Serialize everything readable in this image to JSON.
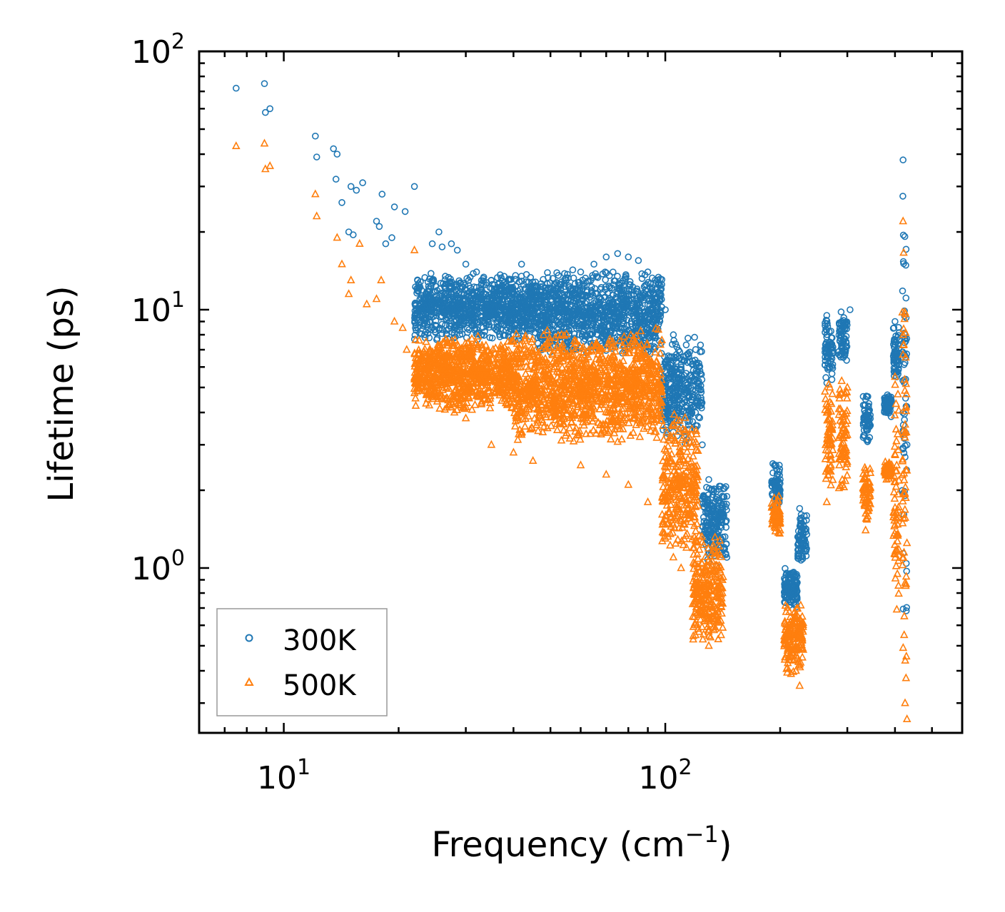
{
  "chart_data": {
    "type": "scatter",
    "xscale": "log",
    "yscale": "log",
    "xlim": [
      6,
      600
    ],
    "ylim": [
      0.23,
      100
    ],
    "xlabel": "Frequency (cm",
    "xlabel_sup": "−1",
    "xlabel_close": ")",
    "ylabel": "Lifetime (ps)",
    "x_major_ticks": [
      {
        "value": 10,
        "base": "10",
        "exp": "1"
      },
      {
        "value": 100,
        "base": "10",
        "exp": "2"
      }
    ],
    "y_major_ticks": [
      {
        "value": 1,
        "base": "10",
        "exp": "0"
      },
      {
        "value": 10,
        "base": "10",
        "exp": "1"
      },
      {
        "value": 100,
        "base": "10",
        "exp": "2"
      }
    ],
    "legend_position": "bottom-left",
    "series": [
      {
        "name": "300K",
        "marker": "circle",
        "color": "#1f77b4",
        "points": [
          [
            7.5,
            72
          ],
          [
            8.9,
            75
          ],
          [
            8.95,
            58
          ],
          [
            9.2,
            60
          ],
          [
            12.1,
            47
          ],
          [
            12.2,
            39
          ],
          [
            13.5,
            42
          ],
          [
            13.8,
            40
          ],
          [
            13.7,
            32
          ],
          [
            14.2,
            26
          ],
          [
            15.0,
            30
          ],
          [
            15.5,
            29
          ],
          [
            16.1,
            31
          ],
          [
            14.8,
            20
          ],
          [
            15.2,
            19.5
          ],
          [
            17.5,
            22
          ],
          [
            17.8,
            21
          ],
          [
            18.1,
            28
          ],
          [
            18.5,
            18
          ],
          [
            19.5,
            25
          ],
          [
            19.2,
            19
          ],
          [
            20.8,
            24
          ],
          [
            22.0,
            30
          ],
          [
            24.5,
            18
          ],
          [
            25.5,
            20
          ],
          [
            26.0,
            17.5
          ],
          [
            27.5,
            18
          ],
          [
            28.5,
            17
          ],
          [
            30.0,
            15
          ],
          [
            32.0,
            14
          ],
          [
            35.0,
            13
          ],
          [
            38.0,
            12.5
          ],
          [
            42.0,
            15
          ],
          [
            45.0,
            11
          ],
          [
            50.0,
            12
          ],
          [
            55.0,
            13
          ],
          [
            60.0,
            14
          ],
          [
            65.0,
            15
          ],
          [
            70.0,
            16
          ],
          [
            75.0,
            16.5
          ],
          [
            80.0,
            16
          ],
          [
            85.0,
            15.5
          ],
          [
            90.0,
            14
          ],
          [
            95.0,
            11
          ],
          [
            100.0,
            10
          ],
          [
            105.0,
            8
          ],
          [
            110.0,
            6
          ],
          [
            115.0,
            5
          ],
          [
            120.0,
            4
          ],
          [
            125.0,
            3
          ],
          [
            130.0,
            2.2
          ],
          [
            135.0,
            1.6
          ],
          [
            140.0,
            1.3
          ],
          [
            145.0,
            1.1
          ],
          [
            195.0,
            2.5
          ],
          [
            200.0,
            2.2
          ],
          [
            210.0,
            0.9
          ],
          [
            220.0,
            0.85
          ],
          [
            225.0,
            1.7
          ],
          [
            265.0,
            9.5
          ],
          [
            270.0,
            6
          ],
          [
            290.0,
            9
          ],
          [
            305.0,
            10
          ],
          [
            335.0,
            4.5
          ],
          [
            380.0,
            4.5
          ],
          [
            400.0,
            9
          ],
          [
            420.0,
            38
          ],
          [
            425.0,
            8
          ],
          [
            430.0,
            3
          ]
        ],
        "bands": [
          {
            "x": [
              22,
              46
            ],
            "y": [
              7.5,
              14
            ]
          },
          {
            "x": [
              46,
              98
            ],
            "y": [
              6.5,
              14.5
            ]
          },
          {
            "x": [
              98,
              125
            ],
            "y": [
              3,
              8
            ]
          },
          {
            "x": [
              125,
              145
            ],
            "y": [
              1.0,
              2.2
            ]
          },
          {
            "x": [
              190,
              200
            ],
            "y": [
              1.6,
              2.6
            ]
          },
          {
            "x": [
              205,
              222
            ],
            "y": [
              0.7,
              1.0
            ]
          },
          {
            "x": [
              222,
              235
            ],
            "y": [
              1.0,
              1.7
            ]
          },
          {
            "x": [
              262,
              275
            ],
            "y": [
              5,
              9.5
            ]
          },
          {
            "x": [
              285,
              300
            ],
            "y": [
              6,
              10
            ]
          },
          {
            "x": [
              330,
              345
            ],
            "y": [
              3,
              4.8
            ]
          },
          {
            "x": [
              375,
              392
            ],
            "y": [
              3.8,
              4.8
            ]
          },
          {
            "x": [
              396,
              410
            ],
            "y": [
              5,
              9
            ]
          },
          {
            "x": [
              418,
              430
            ],
            "y": [
              0.45,
              38
            ]
          }
        ]
      },
      {
        "name": "500K",
        "marker": "triangle",
        "color": "#ff7f0e",
        "points": [
          [
            7.5,
            43
          ],
          [
            8.9,
            44
          ],
          [
            8.95,
            35
          ],
          [
            9.2,
            36
          ],
          [
            12.1,
            28
          ],
          [
            12.2,
            23
          ],
          [
            13.8,
            19
          ],
          [
            14.2,
            15
          ],
          [
            14.8,
            11.5
          ],
          [
            15.0,
            13
          ],
          [
            15.8,
            18
          ],
          [
            16.5,
            10.5
          ],
          [
            17.5,
            11
          ],
          [
            18.0,
            13
          ],
          [
            19.5,
            9
          ],
          [
            20.5,
            8.5
          ],
          [
            21.0,
            7
          ],
          [
            22.0,
            17
          ],
          [
            23.0,
            6
          ],
          [
            25.0,
            4.8
          ],
          [
            26.0,
            4.5
          ],
          [
            28.0,
            4
          ],
          [
            30.0,
            3.8
          ],
          [
            35.0,
            3
          ],
          [
            40.0,
            2.8
          ],
          [
            45.0,
            2.6
          ],
          [
            60.0,
            2.5
          ],
          [
            70.0,
            2.3
          ],
          [
            80.0,
            2.1
          ],
          [
            90.0,
            1.8
          ],
          [
            100.0,
            1.3
          ],
          [
            105.0,
            1.1
          ],
          [
            110.0,
            1.0
          ],
          [
            120.0,
            0.55
          ],
          [
            130.0,
            0.5
          ],
          [
            140.0,
            0.55
          ],
          [
            195.0,
            1.6
          ],
          [
            200.0,
            1.4
          ],
          [
            210.0,
            0.45
          ],
          [
            220.0,
            0.4
          ],
          [
            225.0,
            0.35
          ],
          [
            265.0,
            1.8
          ],
          [
            270.0,
            5
          ],
          [
            290.0,
            5.3
          ],
          [
            300.0,
            5
          ],
          [
            335.0,
            1.4
          ],
          [
            380.0,
            2.2
          ],
          [
            400.0,
            5.5
          ],
          [
            420.0,
            22
          ],
          [
            425.0,
            0.3
          ],
          [
            430.0,
            0.26
          ]
        ],
        "bands": [
          {
            "x": [
              22,
              40
            ],
            "y": [
              4,
              8
            ]
          },
          {
            "x": [
              40,
              98
            ],
            "y": [
              3,
              8.5
            ]
          },
          {
            "x": [
              98,
              122
            ],
            "y": [
              1.1,
              4
            ]
          },
          {
            "x": [
              118,
              142
            ],
            "y": [
              0.5,
              1.4
            ]
          },
          {
            "x": [
              190,
              200
            ],
            "y": [
              1.3,
              1.9
            ]
          },
          {
            "x": [
              205,
              230
            ],
            "y": [
              0.38,
              0.75
            ]
          },
          {
            "x": [
              262,
              275
            ],
            "y": [
              1.8,
              5.5
            ]
          },
          {
            "x": [
              285,
              300
            ],
            "y": [
              1.9,
              5.3
            ]
          },
          {
            "x": [
              330,
              345
            ],
            "y": [
              1.5,
              2.6
            ]
          },
          {
            "x": [
              375,
              392
            ],
            "y": [
              2.2,
              2.6
            ]
          },
          {
            "x": [
              396,
              410
            ],
            "y": [
              0.5,
              5.5
            ]
          },
          {
            "x": [
              418,
              430
            ],
            "y": [
              0.26,
              22
            ]
          }
        ]
      }
    ]
  }
}
